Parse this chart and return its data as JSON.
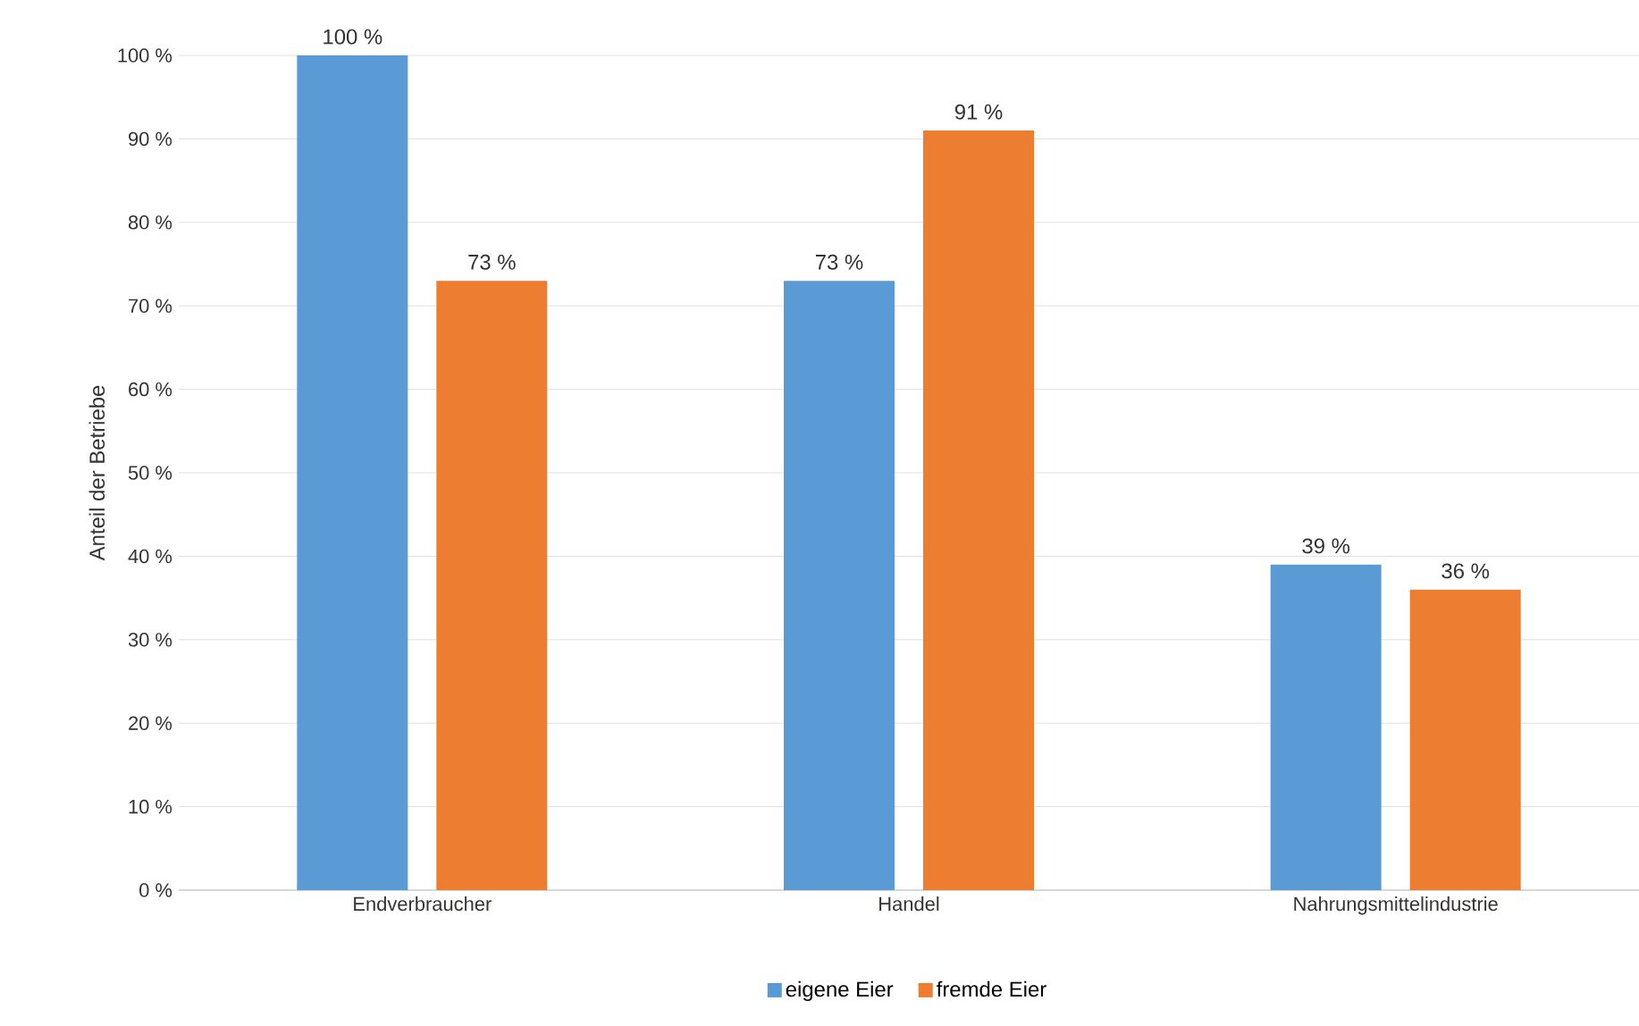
{
  "chart_data": {
    "type": "bar",
    "ylabel": "Anteil der Betriebe",
    "categories": [
      "Endverbraucher",
      "Handel",
      "Nahrungsmittelindustrie"
    ],
    "series": [
      {
        "name": "eigene Eier",
        "color": "#5b9bd5",
        "values": [
          100,
          73,
          39
        ],
        "value_labels": [
          "100 %",
          "73 %",
          "39 %"
        ]
      },
      {
        "name": "fremde Eier",
        "color": "#ed7d31",
        "values": [
          73,
          91,
          36
        ],
        "value_labels": [
          "73 %",
          "91 %",
          "36 %"
        ]
      }
    ],
    "ylim": [
      0,
      100
    ],
    "yticks": [
      {
        "value": 0,
        "label": "0 %"
      },
      {
        "value": 10,
        "label": "10 %"
      },
      {
        "value": 20,
        "label": "20 %"
      },
      {
        "value": 30,
        "label": "30 %"
      },
      {
        "value": 40,
        "label": "40 %"
      },
      {
        "value": 50,
        "label": "50 %"
      },
      {
        "value": 60,
        "label": "60 %"
      },
      {
        "value": 70,
        "label": "70 %"
      },
      {
        "value": 80,
        "label": "80 %"
      },
      {
        "value": 90,
        "label": "90 %"
      },
      {
        "value": 100,
        "label": "100 %"
      }
    ],
    "grid": "y",
    "legend": "bottom"
  }
}
